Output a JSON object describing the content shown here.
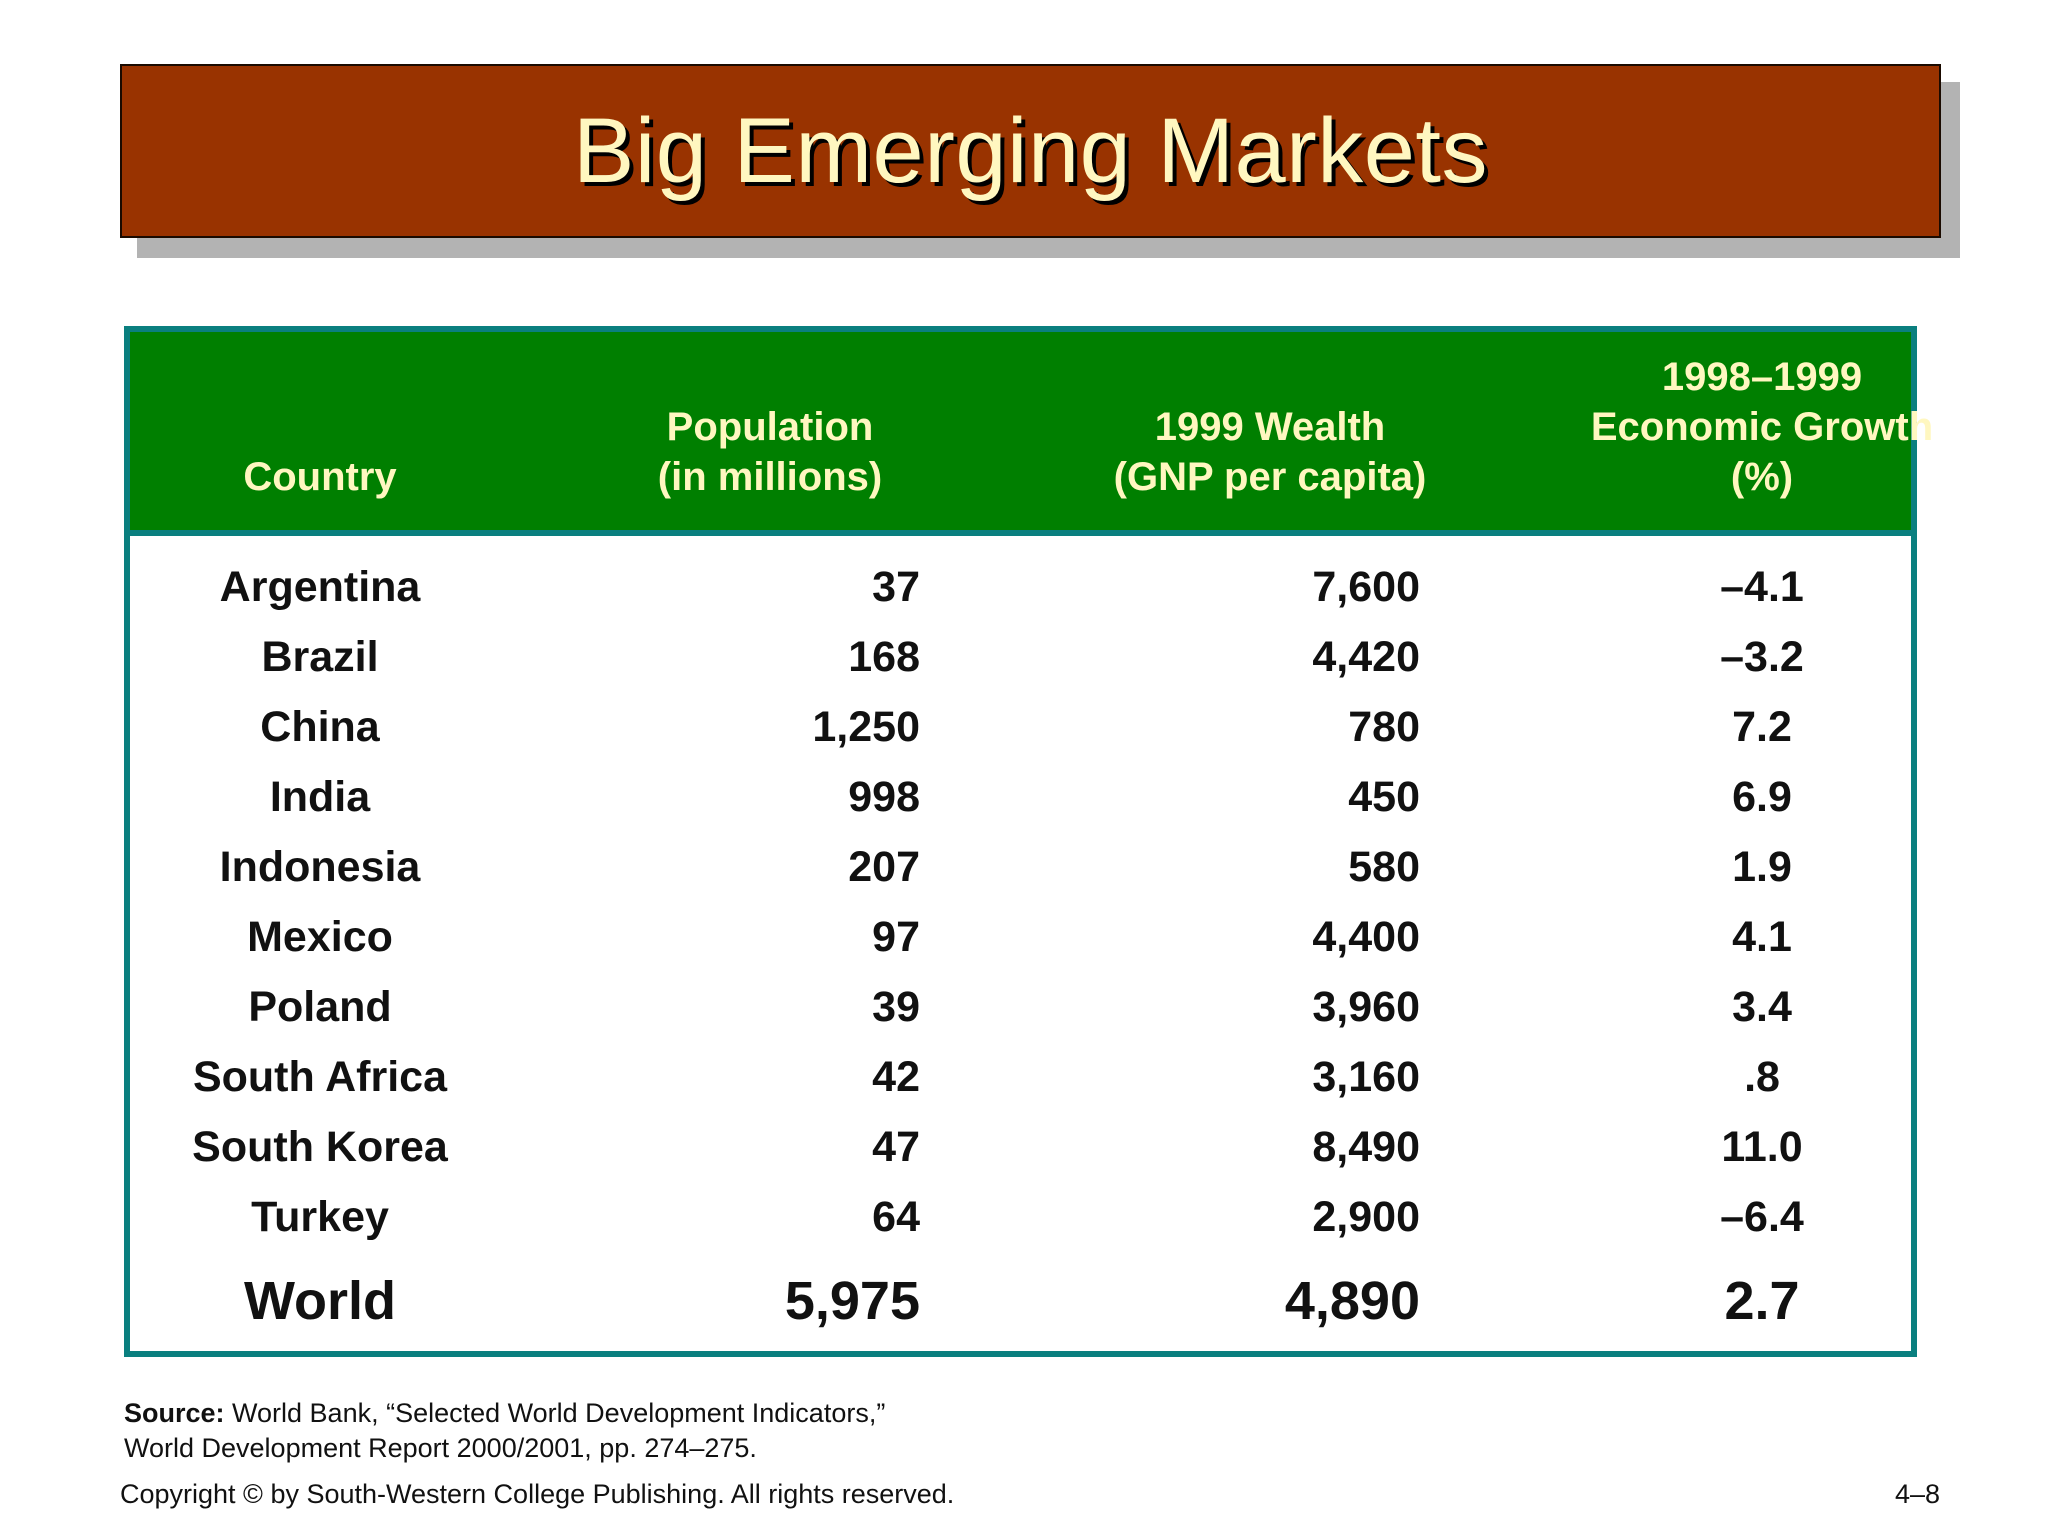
{
  "slide": {
    "title": "Big Emerging Markets",
    "page_number": "4–8"
  },
  "table": {
    "headers": {
      "country": "Country",
      "population": "Population\n(in millions)",
      "wealth": "1999 Wealth\n(GNP per capita)",
      "growth": "1998–1999\nEconomic Growth\n(%)"
    },
    "rows": [
      {
        "country": "Argentina",
        "population": "37",
        "wealth": "7,600",
        "growth": "–4.1"
      },
      {
        "country": "Brazil",
        "population": "168",
        "wealth": "4,420",
        "growth": "–3.2"
      },
      {
        "country": "China",
        "population": "1,250",
        "wealth": "780",
        "growth": "7.2"
      },
      {
        "country": "India",
        "population": "998",
        "wealth": "450",
        "growth": "6.9"
      },
      {
        "country": "Indonesia",
        "population": "207",
        "wealth": "580",
        "growth": "1.9"
      },
      {
        "country": "Mexico",
        "population": "97",
        "wealth": "4,400",
        "growth": "4.1"
      },
      {
        "country": "Poland",
        "population": "39",
        "wealth": "3,960",
        "growth": "3.4"
      },
      {
        "country": "South Africa",
        "population": "42",
        "wealth": "3,160",
        "growth": ".8"
      },
      {
        "country": "South Korea",
        "population": "47",
        "wealth": "8,490",
        "growth": "11.0"
      },
      {
        "country": "Turkey",
        "population": "64",
        "wealth": "2,900",
        "growth": "–6.4"
      }
    ],
    "total": {
      "country": "World",
      "population": "5,975",
      "wealth": "4,890",
      "growth": "2.7"
    }
  },
  "footer": {
    "source_label": "Source:",
    "source_line1": " World Bank, “Selected World Development Indicators,”",
    "source_line2": "World Development Report 2000/2001, pp. 274–275.",
    "copyright": "Copyright © by South-Western College Publishing. All rights reserved."
  },
  "colors": {
    "title_banner": "#993300",
    "title_text": "#fff7c0",
    "header_bg": "#007f00",
    "frame": "#0a7f7f"
  }
}
